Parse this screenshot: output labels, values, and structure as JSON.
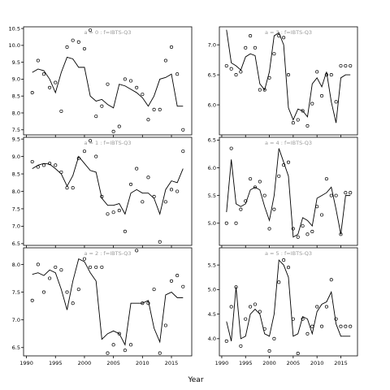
{
  "chart_data": {
    "type": "line",
    "xlabel": "Year",
    "panels": [
      {
        "label": "a = 0  :  f=IBTS-Q3",
        "ylim": [
          7.35,
          10.55
        ],
        "yticks": [
          7.5,
          8.0,
          8.5,
          9.0,
          9.5,
          10.0,
          10.5
        ],
        "ytick_labels": [
          "7.5",
          "8.0",
          "8.5",
          "9.0",
          "9.5",
          "10.0",
          "10.5"
        ],
        "x": [
          1991,
          1992,
          1993,
          1994,
          1995,
          1996,
          1997,
          1998,
          1999,
          2000,
          2001,
          2002,
          2003,
          2004,
          2005,
          2006,
          2007,
          2008,
          2009,
          2010,
          2011,
          2012,
          2013,
          2014,
          2015,
          2016,
          2017
        ],
        "fitted": [
          9.2,
          9.3,
          9.25,
          9.0,
          8.6,
          9.2,
          9.65,
          9.6,
          9.35,
          9.35,
          8.5,
          8.35,
          8.4,
          8.25,
          8.15,
          8.85,
          8.8,
          8.7,
          8.6,
          8.45,
          8.2,
          8.5,
          9.0,
          9.05,
          9.15,
          8.2,
          8.2
        ],
        "observed": [
          8.6,
          9.55,
          9.15,
          8.75,
          8.9,
          8.05,
          9.95,
          10.15,
          10.1,
          9.9,
          10.45,
          7.9,
          8.2,
          8.85,
          7.45,
          7.6,
          9.0,
          8.95,
          8.75,
          8.55,
          7.8,
          8.1,
          8.1,
          9.55,
          9.95,
          9.15,
          7.5
        ]
      },
      {
        "label": "a = 3  :  f=IBTS-Q3",
        "ylim": [
          5.5,
          7.3
        ],
        "yticks": [
          6.0,
          6.5,
          7.0
        ],
        "ytick_labels": [
          "6.0",
          "6.5",
          "7.0"
        ],
        "x": [
          1991,
          1992,
          1993,
          1994,
          1995,
          1996,
          1997,
          1998,
          1999,
          2000,
          2001,
          2002,
          2003,
          2004,
          2005,
          2006,
          2007,
          2008,
          2009,
          2010,
          2011,
          2012,
          2013,
          2014,
          2015,
          2016,
          2017
        ],
        "fitted": [
          7.25,
          6.7,
          6.65,
          6.58,
          6.8,
          6.85,
          6.82,
          6.35,
          6.25,
          6.55,
          7.15,
          7.2,
          7.0,
          5.95,
          5.75,
          5.93,
          5.9,
          5.8,
          6.35,
          6.45,
          6.3,
          6.55,
          6.05,
          5.7,
          6.45,
          6.5,
          6.5
        ],
        "observed": [
          6.65,
          6.6,
          6.5,
          6.55,
          6.95,
          7.15,
          6.95,
          6.25,
          6.25,
          6.45,
          6.85,
          7.15,
          7.12,
          6.5,
          5.7,
          5.75,
          5.9,
          5.65,
          6.02,
          6.55,
          6.15,
          6.5,
          6.5,
          6.05,
          6.65,
          6.65,
          6.65
        ]
      },
      {
        "label": "a = 1  :  f=IBTS-Q3",
        "ylim": [
          6.45,
          9.55
        ],
        "yticks": [
          6.5,
          7.0,
          7.5,
          8.0,
          8.5,
          9.0,
          9.5
        ],
        "ytick_labels": [
          "6.5",
          "7.0",
          "7.5",
          "8.0",
          "8.5",
          "9.0",
          "9.5"
        ],
        "x": [
          1991,
          1992,
          1993,
          1994,
          1995,
          1996,
          1997,
          1998,
          1999,
          2000,
          2001,
          2002,
          2003,
          2004,
          2005,
          2006,
          2007,
          2008,
          2009,
          2010,
          2011,
          2012,
          2013,
          2014,
          2015,
          2016,
          2017
        ],
        "fitted": [
          8.65,
          8.75,
          8.8,
          8.78,
          8.65,
          8.5,
          8.15,
          8.45,
          9.0,
          8.8,
          8.6,
          8.55,
          7.8,
          7.6,
          7.6,
          7.65,
          7.35,
          7.95,
          8.05,
          7.95,
          7.95,
          7.8,
          7.35,
          8.05,
          8.3,
          8.25,
          8.65
        ],
        "observed": [
          8.85,
          8.7,
          8.75,
          8.8,
          8.75,
          8.55,
          8.1,
          8.1,
          8.95,
          9.15,
          9.45,
          9.0,
          7.85,
          7.35,
          7.4,
          7.45,
          6.85,
          8.2,
          8.65,
          7.7,
          8.4,
          7.85,
          6.55,
          7.7,
          8.05,
          8.0,
          9.15
        ]
      },
      {
        "label": "a = 4  :  f=IBTS-Q3",
        "ylim": [
          4.6,
          6.55
        ],
        "yticks": [
          5.0,
          5.5,
          6.0,
          6.5
        ],
        "ytick_labels": [
          "5.0",
          "5.5",
          "6.0",
          "6.5"
        ],
        "x": [
          1991,
          1992,
          1993,
          1994,
          1995,
          1996,
          1997,
          1998,
          1999,
          2000,
          2001,
          2002,
          2003,
          2004,
          2005,
          2006,
          2007,
          2008,
          2009,
          2010,
          2011,
          2012,
          2013,
          2014,
          2015,
          2016,
          2017
        ],
        "fitted": [
          5.2,
          6.15,
          5.35,
          5.3,
          5.35,
          5.6,
          5.65,
          5.6,
          5.3,
          5.05,
          5.5,
          6.35,
          6.1,
          5.85,
          4.75,
          4.8,
          5.1,
          5.05,
          4.95,
          5.45,
          5.5,
          5.55,
          5.65,
          5.25,
          4.8,
          5.5,
          5.5
        ],
        "observed": [
          5.0,
          6.35,
          5.0,
          5.25,
          5.4,
          5.8,
          5.65,
          5.75,
          5.5,
          4.9,
          5.25,
          5.85,
          6.05,
          6.1,
          4.9,
          4.75,
          4.95,
          4.8,
          4.85,
          5.3,
          5.15,
          5.8,
          5.5,
          5.5,
          4.8,
          5.55,
          5.55
        ]
      },
      {
        "label": "a = 2  :  f=IBTS-Q3",
        "ylim": [
          6.35,
          8.3
        ],
        "yticks": [
          6.5,
          7.0,
          7.5,
          8.0
        ],
        "ytick_labels": [
          "6.5",
          "7.0",
          "7.5",
          "8.0"
        ],
        "x": [
          1991,
          1992,
          1993,
          1994,
          1995,
          1996,
          1997,
          1998,
          1999,
          2000,
          2001,
          2002,
          2003,
          2004,
          2005,
          2006,
          2007,
          2008,
          2009,
          2010,
          2011,
          2012,
          2013,
          2014,
          2015,
          2016,
          2017
        ],
        "fitted": [
          7.82,
          7.85,
          7.8,
          7.9,
          7.85,
          7.55,
          7.18,
          7.7,
          8.1,
          8.05,
          7.85,
          7.7,
          6.65,
          6.75,
          6.8,
          6.75,
          6.55,
          7.3,
          7.3,
          7.3,
          7.35,
          6.85,
          6.6,
          7.45,
          7.5,
          7.4,
          7.4
        ],
        "observed": [
          7.35,
          8.0,
          7.5,
          7.75,
          7.95,
          7.9,
          7.5,
          7.3,
          7.55,
          8.1,
          7.95,
          7.95,
          7.95,
          6.4,
          6.55,
          6.75,
          6.45,
          6.55,
          8.25,
          7.3,
          7.3,
          7.55,
          6.4,
          6.9,
          7.7,
          7.8,
          7.6
        ]
      },
      {
        "label": "a = 5  :  f=IBTS-Q3",
        "ylim": [
          3.65,
          5.85
        ],
        "yticks": [
          4.0,
          4.5,
          5.0,
          5.5
        ],
        "ytick_labels": [
          "4.0",
          "4.5",
          "5.0",
          "5.5"
        ],
        "x": [
          1991,
          1992,
          1993,
          1994,
          1995,
          1996,
          1997,
          1998,
          1999,
          2000,
          2001,
          2002,
          2003,
          2004,
          2005,
          2006,
          2007,
          2008,
          2009,
          2010,
          2011,
          2012,
          2013,
          2014,
          2015,
          2016,
          2017
        ],
        "fitted": [
          4.35,
          3.95,
          5.05,
          4.0,
          4.05,
          4.5,
          4.6,
          4.5,
          4.1,
          4.05,
          4.5,
          5.6,
          5.5,
          5.25,
          4.05,
          4.1,
          4.45,
          4.4,
          4.1,
          4.55,
          4.7,
          4.75,
          4.95,
          4.3,
          4.05,
          4.05,
          4.05
        ],
        "observed": [
          3.95,
          4.65,
          5.05,
          3.85,
          4.4,
          4.65,
          4.7,
          4.55,
          4.2,
          3.75,
          4.0,
          5.15,
          5.6,
          5.45,
          4.4,
          3.7,
          4.4,
          4.1,
          4.25,
          4.65,
          4.25,
          4.65,
          5.2,
          4.4,
          4.25,
          4.25,
          4.25
        ]
      }
    ],
    "xticks": [
      1990,
      1995,
      2000,
      2005,
      2010,
      2015
    ],
    "xtick_labels": [
      "1990",
      "1995",
      "2000",
      "2005",
      "2010",
      "2015"
    ],
    "xlim": [
      1989.5,
      2018.5
    ]
  }
}
